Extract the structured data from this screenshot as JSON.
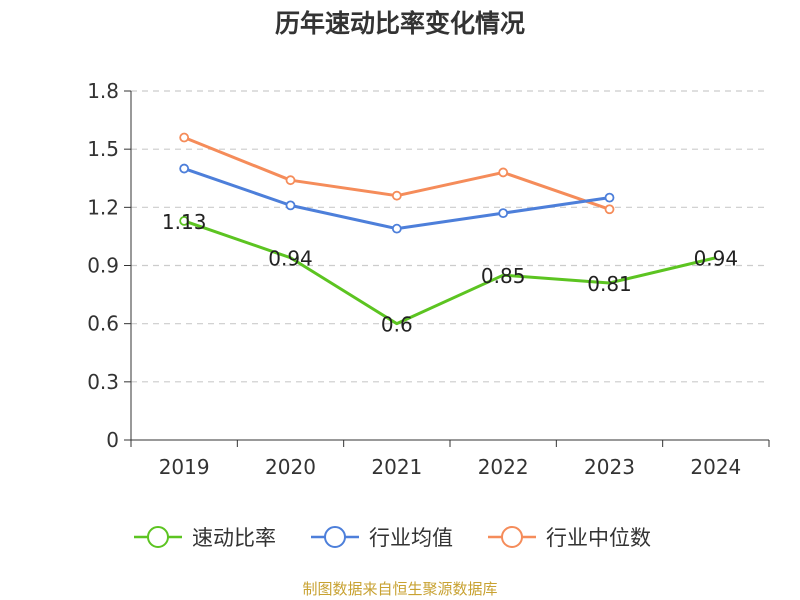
{
  "chart_data": {
    "type": "line",
    "title": "历年速动比率变化情况",
    "categories": [
      "2019",
      "2020",
      "2021",
      "2022",
      "2023",
      "2024"
    ],
    "ylim": [
      0,
      1.8
    ],
    "yticks": [
      "0",
      "0.3",
      "0.6",
      "0.9",
      "1.2",
      "1.5",
      "1.8"
    ],
    "grid": true,
    "legend_position": "bottom",
    "series": [
      {
        "name": "速动比率",
        "color": "#5cc421",
        "values": [
          1.13,
          0.94,
          0.6,
          0.85,
          0.81,
          0.94
        ],
        "labels": [
          "1.13",
          "0.94",
          "0.6",
          "0.85",
          "0.81",
          "0.94"
        ],
        "show_labels": true,
        "markers": "first-only"
      },
      {
        "name": "行业均值",
        "color": "#4d7fda",
        "values": [
          1.4,
          1.21,
          1.09,
          1.17,
          1.25,
          null
        ],
        "show_labels": false,
        "markers": "all"
      },
      {
        "name": "行业中位数",
        "color": "#f58c5a",
        "values": [
          1.56,
          1.34,
          1.26,
          1.38,
          1.19,
          null
        ],
        "show_labels": false,
        "markers": "all"
      }
    ],
    "source_note": "制图数据来自恒生聚源数据库"
  }
}
